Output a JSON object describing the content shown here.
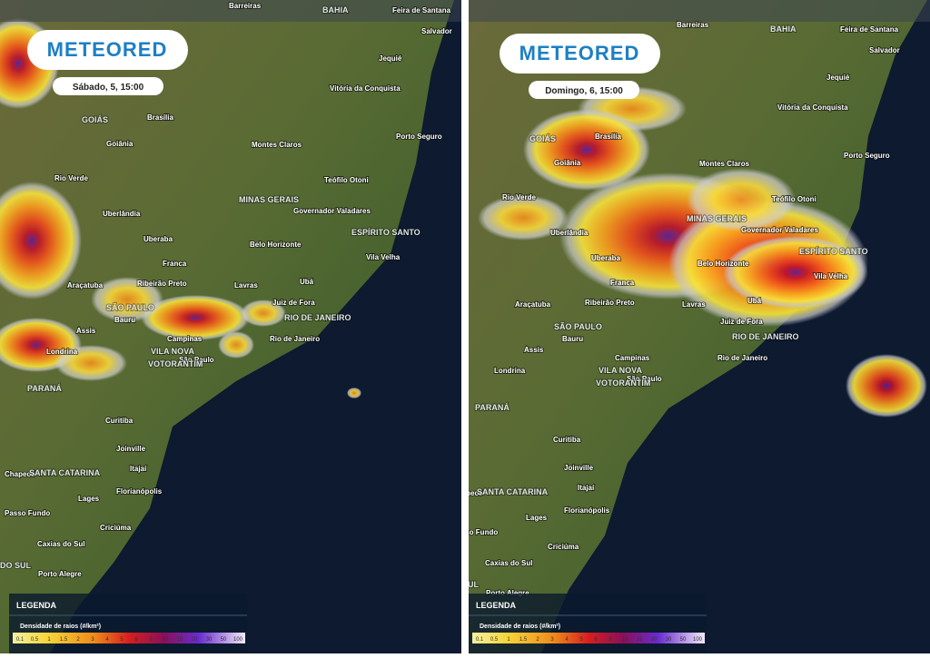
{
  "logo": "METEORED",
  "panels": [
    {
      "date": "Sábado, 5, 15:00"
    },
    {
      "date": "Domingo, 6, 15:00"
    }
  ],
  "cities": [
    "Barreiras",
    "BAHIA",
    "Feira de Santana",
    "Salvador",
    "Jequié",
    "Vitória da Conquista",
    "Brasília",
    "GOIÁS",
    "Goiânia",
    "Montes Claros",
    "Porto Seguro",
    "Rio Verde",
    "Teófilo Otoni",
    "MINAS GERAIS",
    "Governador Valadares",
    "Uberlândia",
    "ESPÍRITO SANTO",
    "Uberaba",
    "Belo Horizonte",
    "Vila Velha",
    "Franca",
    "Araçatuba",
    "Ribeirão Preto",
    "Lavras",
    "Ubá",
    "Juiz de Fora",
    "SÃO PAULO",
    "RIO DE JANEIRO",
    "Bauru",
    "Assis",
    "Campinas",
    "Rio de Janeiro",
    "Londrina",
    "VILA NOVA",
    "São Paulo",
    "VOTORANTIM",
    "PARANÁ",
    "Curitiba",
    "Joinville",
    "Itajaí",
    "Chapecó",
    "SANTA CATARINA",
    "Lages",
    "Florianópolis",
    "Passo Fundo",
    "Criciúma",
    "Caxias do Sul",
    "Porto Alegre",
    "DO SUL"
  ],
  "legend": {
    "title": "LEGENDA",
    "subtitle": "Densidade de raios (#/km²)",
    "scale": [
      "0.1",
      "0.5",
      "1",
      "1.5",
      "2",
      "3",
      "4",
      "5",
      "6",
      "8",
      "10",
      "15",
      "20",
      "30",
      "50",
      "100"
    ]
  }
}
